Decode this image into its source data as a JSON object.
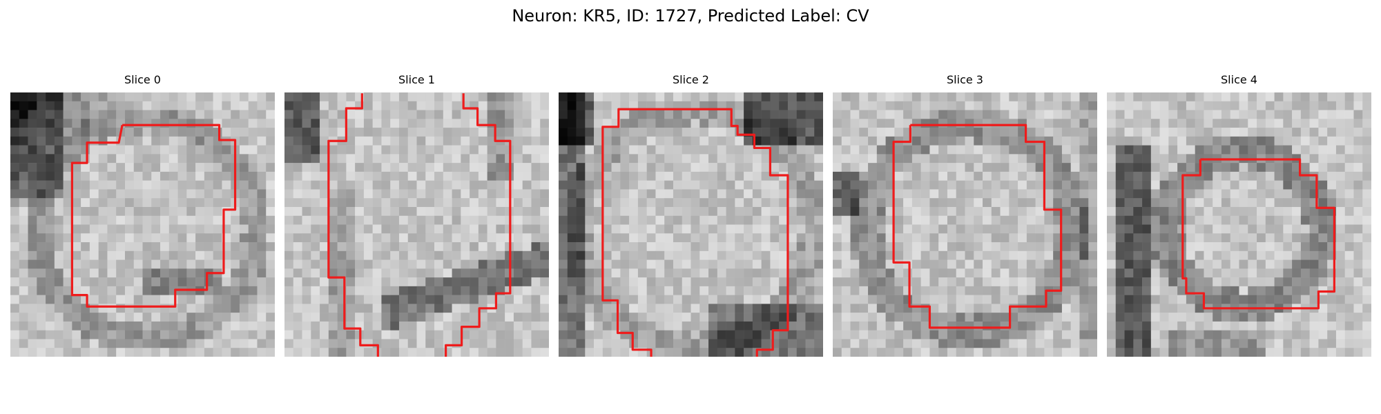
{
  "figure": {
    "title": "Neuron: KR5, ID: 1727, Predicted Label: CV"
  },
  "contour_color": "#ee1c1c",
  "panels": [
    {
      "title": "Slice 0",
      "seed": 11,
      "dark": "left-top"
    },
    {
      "title": "Slice 1",
      "seed": 23,
      "dark": "bottom-band"
    },
    {
      "title": "Slice 2",
      "seed": 37,
      "dark": "left-edge"
    },
    {
      "title": "Slice 3",
      "seed": 41,
      "dark": "ring"
    },
    {
      "title": "Slice 4",
      "seed": 59,
      "dark": "left-column"
    }
  ]
}
